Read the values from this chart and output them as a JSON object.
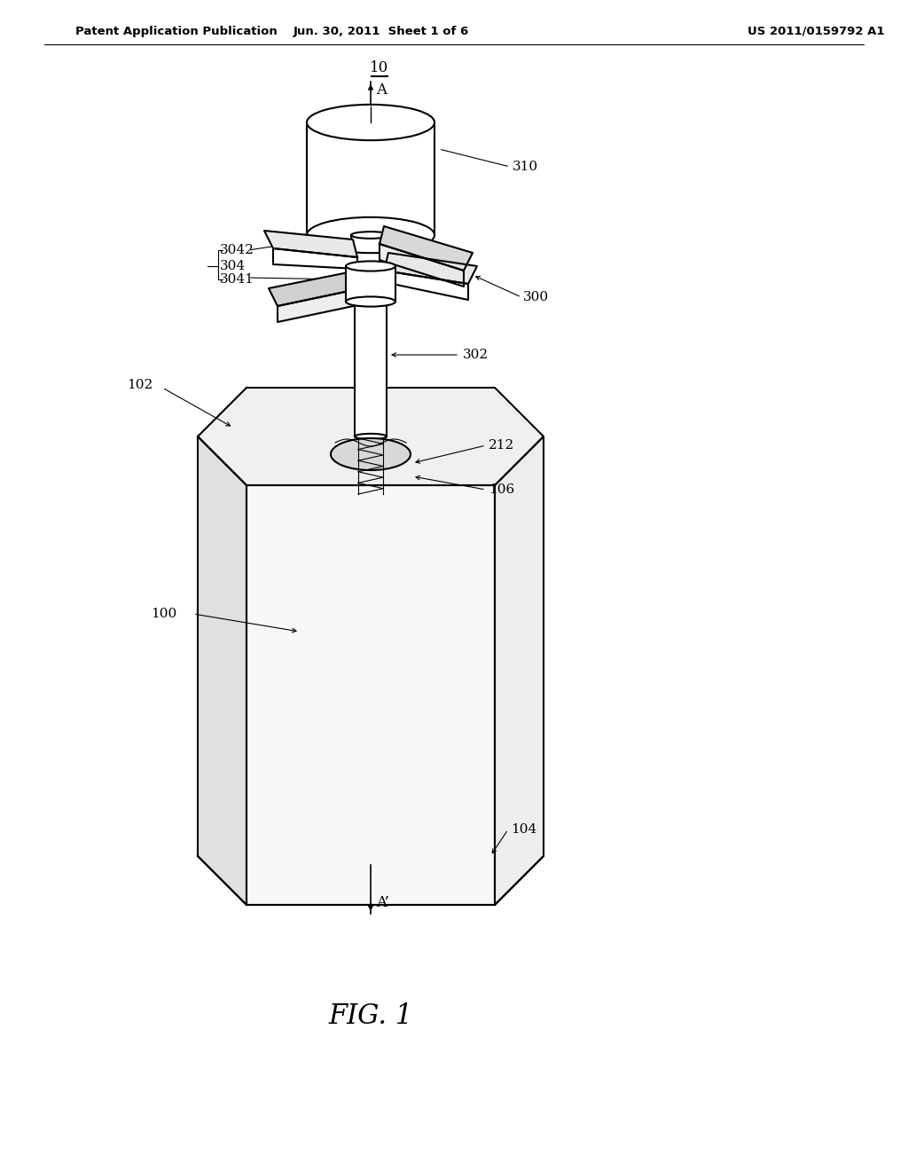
{
  "bg_color": "#ffffff",
  "line_color": "#000000",
  "header_left": "Patent Application Publication",
  "header_mid": "Jun. 30, 2011  Sheet 1 of 6",
  "header_right": "US 2011/0159792 A1",
  "fig_label": "FIG. 1",
  "ref_10": "10",
  "ref_100": "100",
  "ref_102": "102",
  "ref_104": "104",
  "ref_106": "106",
  "ref_212": "212",
  "ref_300": "300",
  "ref_302": "302",
  "ref_304": "304",
  "ref_3041": "3041",
  "ref_3042": "3042",
  "ref_310": "310",
  "axis_label_top": "A",
  "axis_label_bot": "A’"
}
